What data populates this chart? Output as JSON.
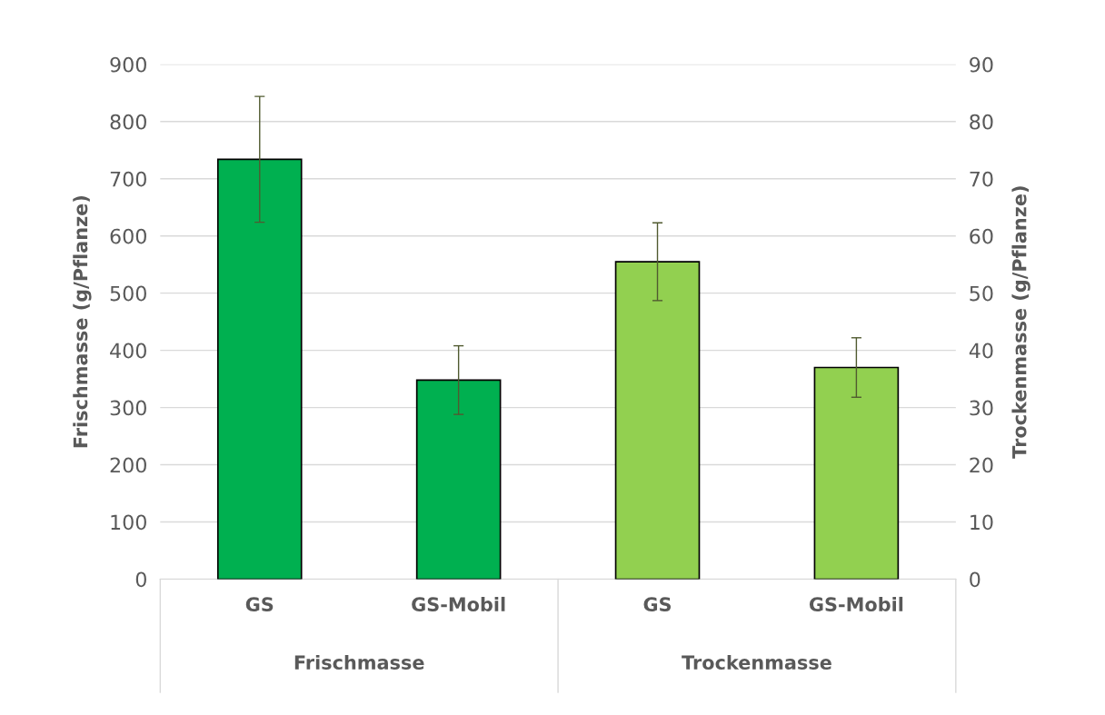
{
  "chart_data": {
    "type": "bar",
    "ylabel": "Frischmasse (g/Pflanze)",
    "y2label": "Trockenmasse (g/Pflanze)",
    "categories": [
      "GS",
      "GS-Mobil",
      "GS",
      "GS-Mobil"
    ],
    "series": [
      {
        "color": "#00b050",
        "values": [
          734,
          348,
          null,
          null
        ],
        "errors": [
          110,
          60,
          null,
          null
        ]
      },
      {
        "color": "#92d050",
        "axis": "y2",
        "values": [
          null,
          null,
          55.5,
          37.0
        ],
        "errors": [
          null,
          null,
          6.8,
          5.2
        ]
      }
    ],
    "ylim": [
      0,
      900
    ],
    "yticks": [
      0,
      100,
      200,
      300,
      400,
      500,
      600,
      700,
      800,
      900
    ],
    "y2lim": [
      0,
      90
    ],
    "y2ticks": [
      0,
      10,
      20,
      30,
      40,
      50,
      60,
      70,
      80,
      90
    ],
    "annotations": [
      "Frischmasse",
      "Trockenmasse"
    ],
    "grid": "y"
  }
}
